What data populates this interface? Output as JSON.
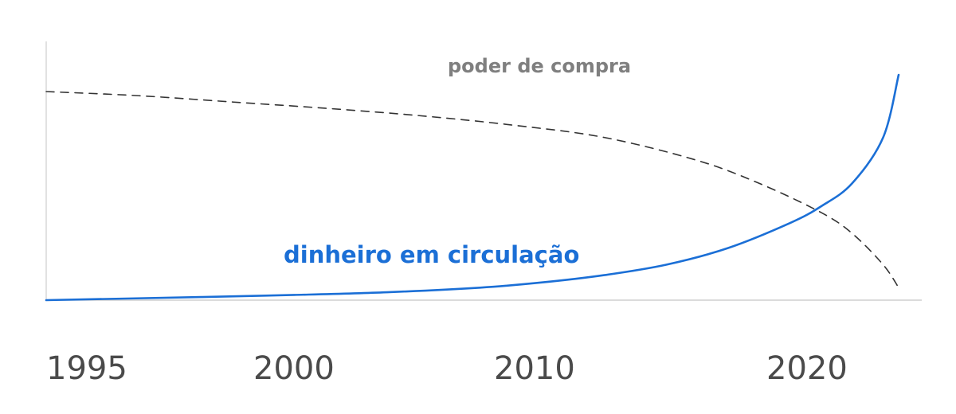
{
  "chart_data": {
    "type": "line",
    "title": "",
    "xlabel": "",
    "ylabel": "",
    "xlim": [
      1995,
      2022.5
    ],
    "ylim": [
      0,
      100
    ],
    "grid": false,
    "x_ticks": [
      "1995",
      "2000",
      "2010",
      "2020"
    ],
    "series": [
      {
        "name": "poder de compra",
        "color": "#333333",
        "style": "dashed",
        "label_color": "#7f7f7f",
        "x": [
          1995,
          1998,
          2001,
          2004,
          2007,
          2010,
          2013,
          2016,
          2018,
          2020,
          2021,
          2022,
          2022.5
        ],
        "y": [
          100,
          98,
          95,
          92,
          88.5,
          84,
          78,
          67,
          56,
          42,
          32,
          17,
          6
        ]
      },
      {
        "name": "dinheiro em circulação",
        "color": "#1b6fd6",
        "style": "solid",
        "label_color": "#1b6fd6",
        "x": [
          1995,
          2000,
          2003,
          2006,
          2009,
          2011,
          2013,
          2015,
          2017,
          2019,
          2020,
          2021,
          2022,
          2022.5
        ],
        "y": [
          0,
          1.5,
          2.5,
          3.8,
          6,
          8.5,
          12,
          17,
          25,
          37,
          45,
          56,
          78,
          108
        ]
      }
    ]
  }
}
